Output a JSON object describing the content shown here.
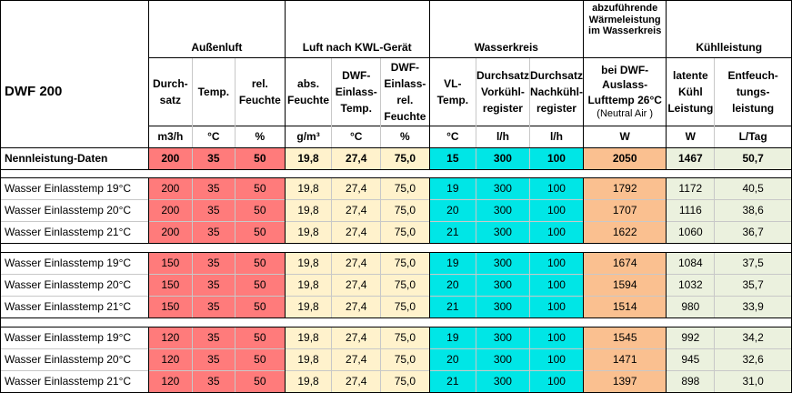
{
  "model": "DWF 200",
  "groups": {
    "aussenluft": "Außenluft",
    "kwl": "Luft nach KWL-Gerät",
    "wasserkreis": "Wasserkreis",
    "waerme": "abzuführende Wärmeleistung im Wasserkreis",
    "kuehl": "Kühlleistung"
  },
  "subheaders": [
    "Durch-\nsatz",
    "Temp.",
    "rel.\nFeuchte",
    "abs.\nFeuchte",
    "DWF-\nEinlass-\nTemp.",
    "DWF-\nEinlass-\nrel.\nFeuchte",
    "VL-\nTemp.",
    "Durchsatz\nVorkühl-\nregister",
    "Durchsatz\nNachkühl-\nregister",
    "bei DWF-\nAuslass-\nLufttemp 26°C",
    "latente\nKühl\nLeistung",
    "Entfeuch-\ntungs-\nleistung"
  ],
  "neutral_air": "(Neutral Air )",
  "units": [
    "m3/h",
    "°C",
    "%",
    "g/m³",
    "°C",
    "%",
    "°C",
    "l/h",
    "l/h",
    "W",
    "W",
    "L/Tag"
  ],
  "nenn": {
    "label": "Nennleistung-Daten",
    "values": [
      "200",
      "35",
      "50",
      "19,8",
      "27,4",
      "75,0",
      "15",
      "300",
      "100",
      "2050",
      "1467",
      "50,7"
    ]
  },
  "groups_rows": [
    [
      {
        "label": "Wasser Einlasstemp 19°C",
        "values": [
          "200",
          "35",
          "50",
          "19,8",
          "27,4",
          "75,0",
          "19",
          "300",
          "100",
          "1792",
          "1172",
          "40,5"
        ]
      },
      {
        "label": "Wasser Einlasstemp 20°C",
        "values": [
          "200",
          "35",
          "50",
          "19,8",
          "27,4",
          "75,0",
          "20",
          "300",
          "100",
          "1707",
          "1116",
          "38,6"
        ]
      },
      {
        "label": "Wasser Einlasstemp 21°C",
        "values": [
          "200",
          "35",
          "50",
          "19,8",
          "27,4",
          "75,0",
          "21",
          "300",
          "100",
          "1622",
          "1060",
          "36,7"
        ]
      }
    ],
    [
      {
        "label": "Wasser Einlasstemp 19°C",
        "values": [
          "150",
          "35",
          "50",
          "19,8",
          "27,4",
          "75,0",
          "19",
          "300",
          "100",
          "1674",
          "1084",
          "37,5"
        ]
      },
      {
        "label": "Wasser Einlasstemp 20°C",
        "values": [
          "150",
          "35",
          "50",
          "19,8",
          "27,4",
          "75,0",
          "20",
          "300",
          "100",
          "1594",
          "1032",
          "35,7"
        ]
      },
      {
        "label": "Wasser Einlasstemp 21°C",
        "values": [
          "150",
          "35",
          "50",
          "19,8",
          "27,4",
          "75,0",
          "21",
          "300",
          "100",
          "1514",
          "980",
          "33,9"
        ]
      }
    ],
    [
      {
        "label": "Wasser Einlasstemp 19°C",
        "values": [
          "120",
          "35",
          "50",
          "19,8",
          "27,4",
          "75,0",
          "19",
          "300",
          "100",
          "1545",
          "992",
          "34,2"
        ]
      },
      {
        "label": "Wasser Einlasstemp 20°C",
        "values": [
          "120",
          "35",
          "50",
          "19,8",
          "27,4",
          "75,0",
          "20",
          "300",
          "100",
          "1471",
          "945",
          "32,6"
        ]
      },
      {
        "label": "Wasser Einlasstemp 21°C",
        "values": [
          "120",
          "35",
          "50",
          "19,8",
          "27,4",
          "75,0",
          "21",
          "300",
          "100",
          "1397",
          "898",
          "31,0"
        ]
      }
    ]
  ],
  "colors": {
    "aussenluft": "#ff7b7b",
    "kwl": "#fff2cc",
    "wasserkreis": "#00e6e6",
    "waerme": "#fac090",
    "kuehl": "#ebf1de"
  }
}
